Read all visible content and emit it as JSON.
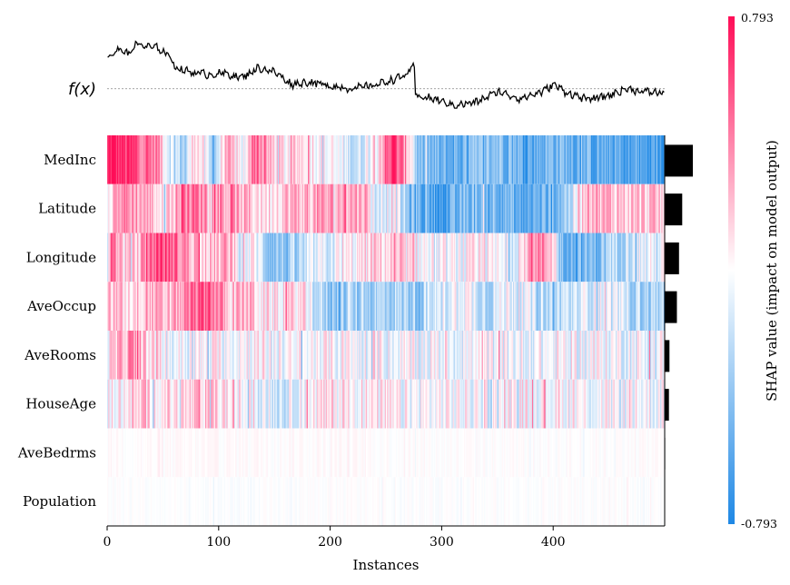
{
  "chart_data": {
    "type": "heatmap",
    "title": "",
    "xlabel": "Instances",
    "output_label": "f(x)",
    "n_instances": 500,
    "xlim": [
      0,
      500
    ],
    "x_ticks": [
      0,
      100,
      200,
      300,
      400
    ],
    "x_tick_labels": [
      "0",
      "100",
      "200",
      "300",
      "400"
    ],
    "features": [
      "MedInc",
      "Latitude",
      "Longitude",
      "AveOccup",
      "AveRooms",
      "HouseAge",
      "AveBedrms",
      "Population"
    ],
    "feature_importance": [
      0.53,
      0.33,
      0.27,
      0.23,
      0.09,
      0.08,
      0.01,
      0.005
    ],
    "colorbar": {
      "label": "SHAP value (impact on model output)",
      "max_label": "0.793",
      "min_label": "-0.793",
      "vmin": -0.793,
      "vmax": 0.793,
      "high_color": "#ff0d57",
      "low_color": "#1e88e5",
      "mid_color": "#ffffff"
    },
    "fx_segments": [
      {
        "x": 0,
        "v": 0.57
      },
      {
        "x": 10,
        "v": 0.71
      },
      {
        "x": 20,
        "v": 0.63
      },
      {
        "x": 25,
        "v": 0.82
      },
      {
        "x": 35,
        "v": 0.76
      },
      {
        "x": 45,
        "v": 0.74
      },
      {
        "x": 55,
        "v": 0.6
      },
      {
        "x": 62,
        "v": 0.37
      },
      {
        "x": 75,
        "v": 0.3
      },
      {
        "x": 90,
        "v": 0.26
      },
      {
        "x": 105,
        "v": 0.28
      },
      {
        "x": 120,
        "v": 0.2
      },
      {
        "x": 135,
        "v": 0.38
      },
      {
        "x": 150,
        "v": 0.3
      },
      {
        "x": 165,
        "v": 0.08
      },
      {
        "x": 180,
        "v": 0.12
      },
      {
        "x": 200,
        "v": 0.05
      },
      {
        "x": 220,
        "v": 0.0
      },
      {
        "x": 240,
        "v": 0.07
      },
      {
        "x": 255,
        "v": 0.16
      },
      {
        "x": 265,
        "v": 0.22
      },
      {
        "x": 275,
        "v": 0.4
      },
      {
        "x": 276,
        "v": -0.12
      },
      {
        "x": 295,
        "v": -0.2
      },
      {
        "x": 310,
        "v": -0.3
      },
      {
        "x": 330,
        "v": -0.25
      },
      {
        "x": 350,
        "v": -0.05
      },
      {
        "x": 370,
        "v": -0.18
      },
      {
        "x": 390,
        "v": -0.05
      },
      {
        "x": 400,
        "v": 0.08
      },
      {
        "x": 410,
        "v": -0.05
      },
      {
        "x": 430,
        "v": -0.2
      },
      {
        "x": 450,
        "v": -0.12
      },
      {
        "x": 465,
        "v": 0.0
      },
      {
        "x": 480,
        "v": -0.05
      },
      {
        "x": 500,
        "v": -0.08
      }
    ],
    "fx_base_value": 0.0,
    "fx_range": [
      -0.45,
      0.95
    ],
    "rows": [
      {
        "feature": "MedInc",
        "scale": 1.0,
        "segments": [
          {
            "x": 0,
            "v": 0.7
          },
          {
            "x": 2,
            "v": 1.0
          },
          {
            "x": 45,
            "v": 0.5
          },
          {
            "x": 55,
            "v": -0.1
          },
          {
            "x": 70,
            "v": -0.4
          },
          {
            "x": 78,
            "v": 0.35
          },
          {
            "x": 95,
            "v": -0.5
          },
          {
            "x": 105,
            "v": 0.3
          },
          {
            "x": 125,
            "v": -0.1
          },
          {
            "x": 130,
            "v": 0.8
          },
          {
            "x": 145,
            "v": 0.25
          },
          {
            "x": 160,
            "v": 0.05
          },
          {
            "x": 175,
            "v": 0.25
          },
          {
            "x": 195,
            "v": 0.0
          },
          {
            "x": 225,
            "v": -0.25
          },
          {
            "x": 245,
            "v": 0.35
          },
          {
            "x": 255,
            "v": 0.85
          },
          {
            "x": 272,
            "v": 0.2
          },
          {
            "x": 278,
            "v": -0.55
          },
          {
            "x": 300,
            "v": -0.7
          },
          {
            "x": 330,
            "v": -0.6
          },
          {
            "x": 350,
            "v": -0.45
          },
          {
            "x": 375,
            "v": -0.7
          },
          {
            "x": 400,
            "v": -0.55
          },
          {
            "x": 440,
            "v": -0.7
          },
          {
            "x": 470,
            "v": -0.8
          },
          {
            "x": 500,
            "v": -0.8
          }
        ]
      },
      {
        "feature": "Latitude",
        "scale": 1.0,
        "segments": [
          {
            "x": 0,
            "v": 0.2
          },
          {
            "x": 12,
            "v": 0.5
          },
          {
            "x": 40,
            "v": 0.3
          },
          {
            "x": 50,
            "v": 0.05
          },
          {
            "x": 70,
            "v": 0.6
          },
          {
            "x": 100,
            "v": 0.45
          },
          {
            "x": 120,
            "v": 0.3
          },
          {
            "x": 140,
            "v": 0.15
          },
          {
            "x": 165,
            "v": 0.3
          },
          {
            "x": 195,
            "v": 0.35
          },
          {
            "x": 230,
            "v": 0.4
          },
          {
            "x": 243,
            "v": -0.3
          },
          {
            "x": 255,
            "v": 0.1
          },
          {
            "x": 270,
            "v": -0.55
          },
          {
            "x": 300,
            "v": -0.85
          },
          {
            "x": 320,
            "v": -0.6
          },
          {
            "x": 350,
            "v": -0.5
          },
          {
            "x": 370,
            "v": -0.75
          },
          {
            "x": 400,
            "v": -0.6
          },
          {
            "x": 415,
            "v": -0.3
          },
          {
            "x": 430,
            "v": 0.45
          },
          {
            "x": 445,
            "v": 0.3
          },
          {
            "x": 470,
            "v": 0.25
          },
          {
            "x": 500,
            "v": 0.2
          }
        ]
      },
      {
        "feature": "Longitude",
        "scale": 1.0,
        "segments": [
          {
            "x": 0,
            "v": 0.15
          },
          {
            "x": 4,
            "v": 0.65
          },
          {
            "x": 15,
            "v": 0.15
          },
          {
            "x": 30,
            "v": 0.25
          },
          {
            "x": 45,
            "v": 0.8
          },
          {
            "x": 70,
            "v": 0.45
          },
          {
            "x": 90,
            "v": 0.2
          },
          {
            "x": 110,
            "v": 0.35
          },
          {
            "x": 120,
            "v": -0.15
          },
          {
            "x": 130,
            "v": 0.05
          },
          {
            "x": 145,
            "v": -0.45
          },
          {
            "x": 165,
            "v": -0.5
          },
          {
            "x": 185,
            "v": -0.2
          },
          {
            "x": 210,
            "v": -0.05
          },
          {
            "x": 245,
            "v": 0.2
          },
          {
            "x": 275,
            "v": 0.05
          },
          {
            "x": 300,
            "v": -0.1
          },
          {
            "x": 330,
            "v": 0.0
          },
          {
            "x": 360,
            "v": -0.1
          },
          {
            "x": 375,
            "v": 0.1
          },
          {
            "x": 380,
            "v": 0.55
          },
          {
            "x": 400,
            "v": 0.3
          },
          {
            "x": 405,
            "v": -0.5
          },
          {
            "x": 420,
            "v": -0.65
          },
          {
            "x": 440,
            "v": -0.55
          },
          {
            "x": 455,
            "v": -0.3
          },
          {
            "x": 475,
            "v": -0.1
          },
          {
            "x": 500,
            "v": -0.1
          }
        ]
      },
      {
        "feature": "AveOccup",
        "scale": 1.0,
        "segments": [
          {
            "x": 0,
            "v": 0.3
          },
          {
            "x": 15,
            "v": 0.15
          },
          {
            "x": 35,
            "v": 0.35
          },
          {
            "x": 50,
            "v": 0.2
          },
          {
            "x": 70,
            "v": 0.45
          },
          {
            "x": 90,
            "v": 0.75
          },
          {
            "x": 110,
            "v": 0.2
          },
          {
            "x": 125,
            "v": 0.35
          },
          {
            "x": 140,
            "v": 0.05
          },
          {
            "x": 170,
            "v": 0.15
          },
          {
            "x": 180,
            "v": 0.0
          },
          {
            "x": 195,
            "v": -0.45
          },
          {
            "x": 230,
            "v": -0.4
          },
          {
            "x": 255,
            "v": -0.35
          },
          {
            "x": 280,
            "v": -0.4
          },
          {
            "x": 300,
            "v": -0.15
          },
          {
            "x": 320,
            "v": 0.05
          },
          {
            "x": 340,
            "v": -0.3
          },
          {
            "x": 360,
            "v": 0.0
          },
          {
            "x": 380,
            "v": -0.2
          },
          {
            "x": 400,
            "v": -0.35
          },
          {
            "x": 420,
            "v": -0.2
          },
          {
            "x": 440,
            "v": -0.05
          },
          {
            "x": 460,
            "v": -0.2
          },
          {
            "x": 480,
            "v": -0.35
          },
          {
            "x": 500,
            "v": -0.35
          }
        ]
      },
      {
        "feature": "AveRooms",
        "scale": 1.0,
        "segments": [
          {
            "x": 0,
            "v": 0.05
          },
          {
            "x": 10,
            "v": 0.25
          },
          {
            "x": 20,
            "v": 0.45
          },
          {
            "x": 42,
            "v": 0.1
          },
          {
            "x": 55,
            "v": -0.05
          },
          {
            "x": 100,
            "v": 0.0
          },
          {
            "x": 130,
            "v": 0.05
          },
          {
            "x": 160,
            "v": -0.05
          },
          {
            "x": 200,
            "v": 0.0
          },
          {
            "x": 260,
            "v": -0.05
          },
          {
            "x": 300,
            "v": -0.03
          },
          {
            "x": 360,
            "v": -0.05
          },
          {
            "x": 420,
            "v": -0.03
          },
          {
            "x": 500,
            "v": -0.05
          }
        ]
      },
      {
        "feature": "HouseAge",
        "scale": 1.0,
        "segments": [
          {
            "x": 0,
            "v": 0.05
          },
          {
            "x": 15,
            "v": 0.1
          },
          {
            "x": 35,
            "v": 0.2
          },
          {
            "x": 60,
            "v": 0.1
          },
          {
            "x": 90,
            "v": 0.2
          },
          {
            "x": 115,
            "v": 0.05
          },
          {
            "x": 140,
            "v": -0.1
          },
          {
            "x": 160,
            "v": -0.2
          },
          {
            "x": 170,
            "v": 0.0
          },
          {
            "x": 200,
            "v": 0.1
          },
          {
            "x": 240,
            "v": 0.05
          },
          {
            "x": 270,
            "v": -0.05
          },
          {
            "x": 300,
            "v": 0.0
          },
          {
            "x": 340,
            "v": -0.05
          },
          {
            "x": 370,
            "v": 0.05
          },
          {
            "x": 420,
            "v": 0.0
          },
          {
            "x": 460,
            "v": -0.05
          },
          {
            "x": 500,
            "v": 0.0
          }
        ]
      },
      {
        "feature": "AveBedrms",
        "scale": 0.15,
        "segments": [
          {
            "x": 0,
            "v": 0.02
          },
          {
            "x": 50,
            "v": 0.01
          },
          {
            "x": 150,
            "v": 0.02
          },
          {
            "x": 250,
            "v": 0.01
          },
          {
            "x": 350,
            "v": 0.0
          },
          {
            "x": 500,
            "v": 0.01
          }
        ]
      },
      {
        "feature": "Population",
        "scale": 0.12,
        "segments": [
          {
            "x": 0,
            "v": 0.0
          },
          {
            "x": 100,
            "v": -0.02
          },
          {
            "x": 200,
            "v": 0.0
          },
          {
            "x": 300,
            "v": -0.01
          },
          {
            "x": 400,
            "v": 0.0
          },
          {
            "x": 500,
            "v": -0.01
          }
        ]
      }
    ]
  }
}
